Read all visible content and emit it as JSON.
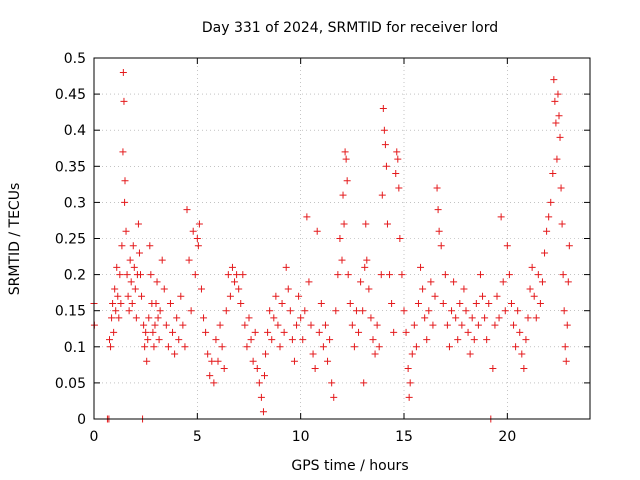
{
  "chart_data": {
    "type": "scatter",
    "title": "Day 331 of 2024, SRMTID for receiver lord",
    "xlabel": "GPS time / hours",
    "ylabel": "SRMTID / TECUs",
    "xlim": [
      0,
      24
    ],
    "ylim": [
      0,
      0.5
    ],
    "xticks": [
      "0",
      "5",
      "10",
      "15",
      "20"
    ],
    "xtick_values": [
      0,
      5,
      10,
      15,
      20
    ],
    "yticks": [
      "0",
      "0.05",
      "0.1",
      "0.15",
      "0.2",
      "0.25",
      "0.3",
      "0.35",
      "0.4",
      "0.45",
      "0.5"
    ],
    "ytick_values": [
      0,
      0.05,
      0.1,
      0.15,
      0.2,
      0.25,
      0.3,
      0.35,
      0.4,
      0.45,
      0.5
    ],
    "grid": true,
    "marker": "+",
    "color": "#e41a1c",
    "series": [
      {
        "points": [
          [
            0.0,
            0.16
          ],
          [
            0.02,
            0.13
          ],
          [
            0.65,
            0.0
          ],
          [
            0.72,
            0.0
          ],
          [
            0.75,
            0.11
          ],
          [
            0.8,
            0.1
          ],
          [
            0.85,
            0.14
          ],
          [
            0.9,
            0.16
          ],
          [
            0.95,
            0.12
          ],
          [
            1.0,
            0.18
          ],
          [
            1.05,
            0.15
          ],
          [
            1.1,
            0.21
          ],
          [
            1.15,
            0.17
          ],
          [
            1.2,
            0.14
          ],
          [
            1.25,
            0.2
          ],
          [
            1.3,
            0.16
          ],
          [
            1.35,
            0.24
          ],
          [
            1.4,
            0.37
          ],
          [
            1.42,
            0.48
          ],
          [
            1.45,
            0.44
          ],
          [
            1.48,
            0.3
          ],
          [
            1.5,
            0.33
          ],
          [
            1.55,
            0.26
          ],
          [
            1.6,
            0.2
          ],
          [
            1.65,
            0.17
          ],
          [
            1.7,
            0.15
          ],
          [
            1.75,
            0.22
          ],
          [
            1.8,
            0.19
          ],
          [
            1.85,
            0.16
          ],
          [
            1.9,
            0.24
          ],
          [
            1.95,
            0.21
          ],
          [
            2.0,
            0.18
          ],
          [
            2.05,
            0.14
          ],
          [
            2.1,
            0.2
          ],
          [
            2.15,
            0.27
          ],
          [
            2.2,
            0.23
          ],
          [
            2.25,
            0.2
          ],
          [
            2.3,
            0.17
          ],
          [
            2.35,
            0.0
          ],
          [
            2.4,
            0.13
          ],
          [
            2.45,
            0.1
          ],
          [
            2.5,
            0.12
          ],
          [
            2.55,
            0.08
          ],
          [
            2.6,
            0.11
          ],
          [
            2.65,
            0.14
          ],
          [
            2.7,
            0.24
          ],
          [
            2.75,
            0.2
          ],
          [
            2.8,
            0.16
          ],
          [
            2.85,
            0.12
          ],
          [
            2.9,
            0.1
          ],
          [
            2.95,
            0.13
          ],
          [
            3.0,
            0.16
          ],
          [
            3.05,
            0.19
          ],
          [
            3.1,
            0.14
          ],
          [
            3.15,
            0.11
          ],
          [
            3.2,
            0.15
          ],
          [
            3.3,
            0.22
          ],
          [
            3.4,
            0.18
          ],
          [
            3.5,
            0.13
          ],
          [
            3.6,
            0.1
          ],
          [
            3.7,
            0.16
          ],
          [
            3.8,
            0.12
          ],
          [
            3.9,
            0.09
          ],
          [
            4.0,
            0.14
          ],
          [
            4.1,
            0.11
          ],
          [
            4.2,
            0.17
          ],
          [
            4.3,
            0.13
          ],
          [
            4.4,
            0.1
          ],
          [
            4.5,
            0.29
          ],
          [
            4.6,
            0.22
          ],
          [
            4.7,
            0.15
          ],
          [
            4.8,
            0.26
          ],
          [
            4.9,
            0.2
          ],
          [
            5.0,
            0.25
          ],
          [
            5.05,
            0.24
          ],
          [
            5.1,
            0.27
          ],
          [
            5.2,
            0.18
          ],
          [
            5.3,
            0.14
          ],
          [
            5.4,
            0.12
          ],
          [
            5.5,
            0.09
          ],
          [
            5.6,
            0.06
          ],
          [
            5.7,
            0.08
          ],
          [
            5.8,
            0.05
          ],
          [
            5.9,
            0.11
          ],
          [
            6.0,
            0.08
          ],
          [
            6.1,
            0.13
          ],
          [
            6.2,
            0.1
          ],
          [
            6.3,
            0.07
          ],
          [
            6.4,
            0.15
          ],
          [
            6.5,
            0.2
          ],
          [
            6.6,
            0.17
          ],
          [
            6.7,
            0.21
          ],
          [
            6.8,
            0.19
          ],
          [
            6.9,
            0.2
          ],
          [
            7.0,
            0.18
          ],
          [
            7.1,
            0.16
          ],
          [
            7.2,
            0.2
          ],
          [
            7.3,
            0.13
          ],
          [
            7.4,
            0.1
          ],
          [
            7.5,
            0.14
          ],
          [
            7.6,
            0.11
          ],
          [
            7.7,
            0.08
          ],
          [
            7.8,
            0.12
          ],
          [
            7.9,
            0.07
          ],
          [
            8.0,
            0.05
          ],
          [
            8.1,
            0.03
          ],
          [
            8.2,
            0.01
          ],
          [
            8.25,
            0.06
          ],
          [
            8.3,
            0.09
          ],
          [
            8.4,
            0.12
          ],
          [
            8.5,
            0.15
          ],
          [
            8.6,
            0.11
          ],
          [
            8.7,
            0.14
          ],
          [
            8.8,
            0.17
          ],
          [
            8.9,
            0.13
          ],
          [
            9.0,
            0.1
          ],
          [
            9.1,
            0.16
          ],
          [
            9.2,
            0.12
          ],
          [
            9.3,
            0.21
          ],
          [
            9.4,
            0.18
          ],
          [
            9.5,
            0.15
          ],
          [
            9.6,
            0.11
          ],
          [
            9.7,
            0.08
          ],
          [
            9.8,
            0.13
          ],
          [
            9.9,
            0.17
          ],
          [
            10.0,
            0.14
          ],
          [
            10.1,
            0.11
          ],
          [
            10.2,
            0.15
          ],
          [
            10.3,
            0.28
          ],
          [
            10.4,
            0.19
          ],
          [
            10.5,
            0.13
          ],
          [
            10.6,
            0.09
          ],
          [
            10.7,
            0.07
          ],
          [
            10.8,
            0.26
          ],
          [
            10.9,
            0.12
          ],
          [
            11.0,
            0.16
          ],
          [
            11.1,
            0.1
          ],
          [
            11.2,
            0.13
          ],
          [
            11.3,
            0.08
          ],
          [
            11.4,
            0.11
          ],
          [
            11.5,
            0.05
          ],
          [
            11.6,
            0.03
          ],
          [
            11.7,
            0.15
          ],
          [
            11.8,
            0.2
          ],
          [
            11.9,
            0.25
          ],
          [
            12.0,
            0.22
          ],
          [
            12.05,
            0.31
          ],
          [
            12.1,
            0.27
          ],
          [
            12.15,
            0.37
          ],
          [
            12.2,
            0.36
          ],
          [
            12.25,
            0.33
          ],
          [
            12.3,
            0.2
          ],
          [
            12.4,
            0.16
          ],
          [
            12.5,
            0.13
          ],
          [
            12.6,
            0.1
          ],
          [
            12.7,
            0.15
          ],
          [
            12.8,
            0.12
          ],
          [
            12.9,
            0.19
          ],
          [
            13.0,
            0.15
          ],
          [
            13.05,
            0.05
          ],
          [
            13.1,
            0.21
          ],
          [
            13.15,
            0.27
          ],
          [
            13.2,
            0.22
          ],
          [
            13.3,
            0.18
          ],
          [
            13.4,
            0.14
          ],
          [
            13.5,
            0.11
          ],
          [
            13.6,
            0.09
          ],
          [
            13.7,
            0.13
          ],
          [
            13.8,
            0.1
          ],
          [
            13.9,
            0.2
          ],
          [
            13.95,
            0.31
          ],
          [
            14.0,
            0.43
          ],
          [
            14.05,
            0.4
          ],
          [
            14.1,
            0.38
          ],
          [
            14.15,
            0.35
          ],
          [
            14.2,
            0.27
          ],
          [
            14.3,
            0.2
          ],
          [
            14.4,
            0.16
          ],
          [
            14.5,
            0.12
          ],
          [
            14.6,
            0.34
          ],
          [
            14.65,
            0.37
          ],
          [
            14.7,
            0.36
          ],
          [
            14.75,
            0.32
          ],
          [
            14.8,
            0.25
          ],
          [
            14.9,
            0.2
          ],
          [
            15.0,
            0.15
          ],
          [
            15.1,
            0.12
          ],
          [
            15.2,
            0.07
          ],
          [
            15.25,
            0.03
          ],
          [
            15.3,
            0.05
          ],
          [
            15.4,
            0.09
          ],
          [
            15.5,
            0.13
          ],
          [
            15.6,
            0.1
          ],
          [
            15.7,
            0.16
          ],
          [
            15.8,
            0.21
          ],
          [
            15.9,
            0.18
          ],
          [
            16.0,
            0.14
          ],
          [
            16.1,
            0.11
          ],
          [
            16.2,
            0.15
          ],
          [
            16.3,
            0.19
          ],
          [
            16.4,
            0.13
          ],
          [
            16.5,
            0.17
          ],
          [
            16.6,
            0.32
          ],
          [
            16.65,
            0.29
          ],
          [
            16.7,
            0.26
          ],
          [
            16.8,
            0.24
          ],
          [
            16.9,
            0.16
          ],
          [
            17.0,
            0.2
          ],
          [
            17.1,
            0.13
          ],
          [
            17.2,
            0.1
          ],
          [
            17.3,
            0.15
          ],
          [
            17.4,
            0.19
          ],
          [
            17.5,
            0.14
          ],
          [
            17.6,
            0.11
          ],
          [
            17.7,
            0.16
          ],
          [
            17.8,
            0.13
          ],
          [
            17.9,
            0.18
          ],
          [
            18.0,
            0.15
          ],
          [
            18.1,
            0.12
          ],
          [
            18.2,
            0.09
          ],
          [
            18.3,
            0.14
          ],
          [
            18.4,
            0.11
          ],
          [
            18.5,
            0.16
          ],
          [
            18.6,
            0.13
          ],
          [
            18.7,
            0.2
          ],
          [
            18.8,
            0.17
          ],
          [
            18.9,
            0.14
          ],
          [
            19.0,
            0.11
          ],
          [
            19.1,
            0.16
          ],
          [
            19.2,
            0.0
          ],
          [
            19.3,
            0.07
          ],
          [
            19.4,
            0.13
          ],
          [
            19.5,
            0.17
          ],
          [
            19.6,
            0.14
          ],
          [
            19.7,
            0.28
          ],
          [
            19.8,
            0.19
          ],
          [
            19.9,
            0.15
          ],
          [
            20.0,
            0.24
          ],
          [
            20.1,
            0.2
          ],
          [
            20.2,
            0.16
          ],
          [
            20.3,
            0.13
          ],
          [
            20.4,
            0.1
          ],
          [
            20.5,
            0.15
          ],
          [
            20.6,
            0.12
          ],
          [
            20.7,
            0.09
          ],
          [
            20.8,
            0.07
          ],
          [
            20.9,
            0.11
          ],
          [
            21.0,
            0.14
          ],
          [
            21.1,
            0.18
          ],
          [
            21.2,
            0.21
          ],
          [
            21.3,
            0.17
          ],
          [
            21.4,
            0.14
          ],
          [
            21.5,
            0.2
          ],
          [
            21.6,
            0.16
          ],
          [
            21.7,
            0.19
          ],
          [
            21.8,
            0.23
          ],
          [
            21.9,
            0.26
          ],
          [
            22.0,
            0.28
          ],
          [
            22.1,
            0.3
          ],
          [
            22.2,
            0.34
          ],
          [
            22.25,
            0.47
          ],
          [
            22.3,
            0.44
          ],
          [
            22.35,
            0.41
          ],
          [
            22.4,
            0.36
          ],
          [
            22.45,
            0.45
          ],
          [
            22.5,
            0.42
          ],
          [
            22.55,
            0.39
          ],
          [
            22.6,
            0.32
          ],
          [
            22.65,
            0.27
          ],
          [
            22.7,
            0.2
          ],
          [
            22.75,
            0.15
          ],
          [
            22.8,
            0.1
          ],
          [
            22.85,
            0.08
          ],
          [
            22.9,
            0.13
          ],
          [
            22.95,
            0.19
          ],
          [
            23.0,
            0.24
          ]
        ]
      }
    ]
  }
}
